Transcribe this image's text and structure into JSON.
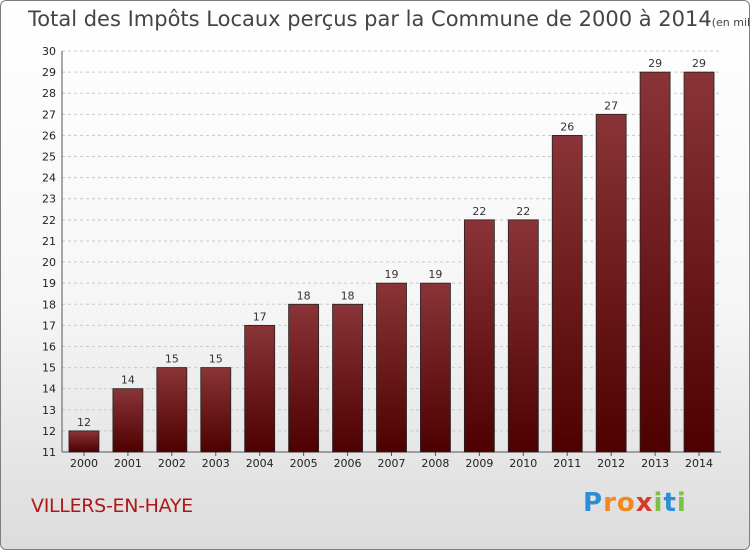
{
  "title": "Total des Impôts Locaux perçus par la Commune de 2000 à 2014",
  "title_unit": "(en milliers d'€)",
  "commune": "VILLERS-EN-HAYE",
  "logo": {
    "letters": [
      "P",
      "r",
      "o",
      "x",
      "i",
      "t",
      "i"
    ],
    "colors": [
      "#2a8fd6",
      "#f08a1c",
      "#f08a1c",
      "#d83a2a",
      "#7cc04a",
      "#2a8fd6",
      "#7cc04a"
    ]
  },
  "colors": {
    "bar_top": "#8a3438",
    "bar_bottom": "#4e0000",
    "grid": "#c8c8c8"
  },
  "chart_data": {
    "type": "bar",
    "title": "Total des Impôts Locaux perçus par la Commune de 2000 à 2014",
    "xlabel": "",
    "ylabel": "",
    "categories": [
      "2000",
      "2001",
      "2002",
      "2003",
      "2004",
      "2005",
      "2006",
      "2007",
      "2008",
      "2009",
      "2010",
      "2011",
      "2012",
      "2013",
      "2014"
    ],
    "values": [
      12,
      14,
      15,
      15,
      17,
      18,
      18,
      19,
      19,
      22,
      22,
      26,
      27,
      29,
      29
    ],
    "ylim": [
      11,
      30
    ],
    "yticks": [
      11,
      12,
      13,
      14,
      15,
      16,
      17,
      18,
      19,
      20,
      21,
      22,
      23,
      24,
      25,
      26,
      27,
      28,
      29,
      30
    ],
    "grid": true
  }
}
